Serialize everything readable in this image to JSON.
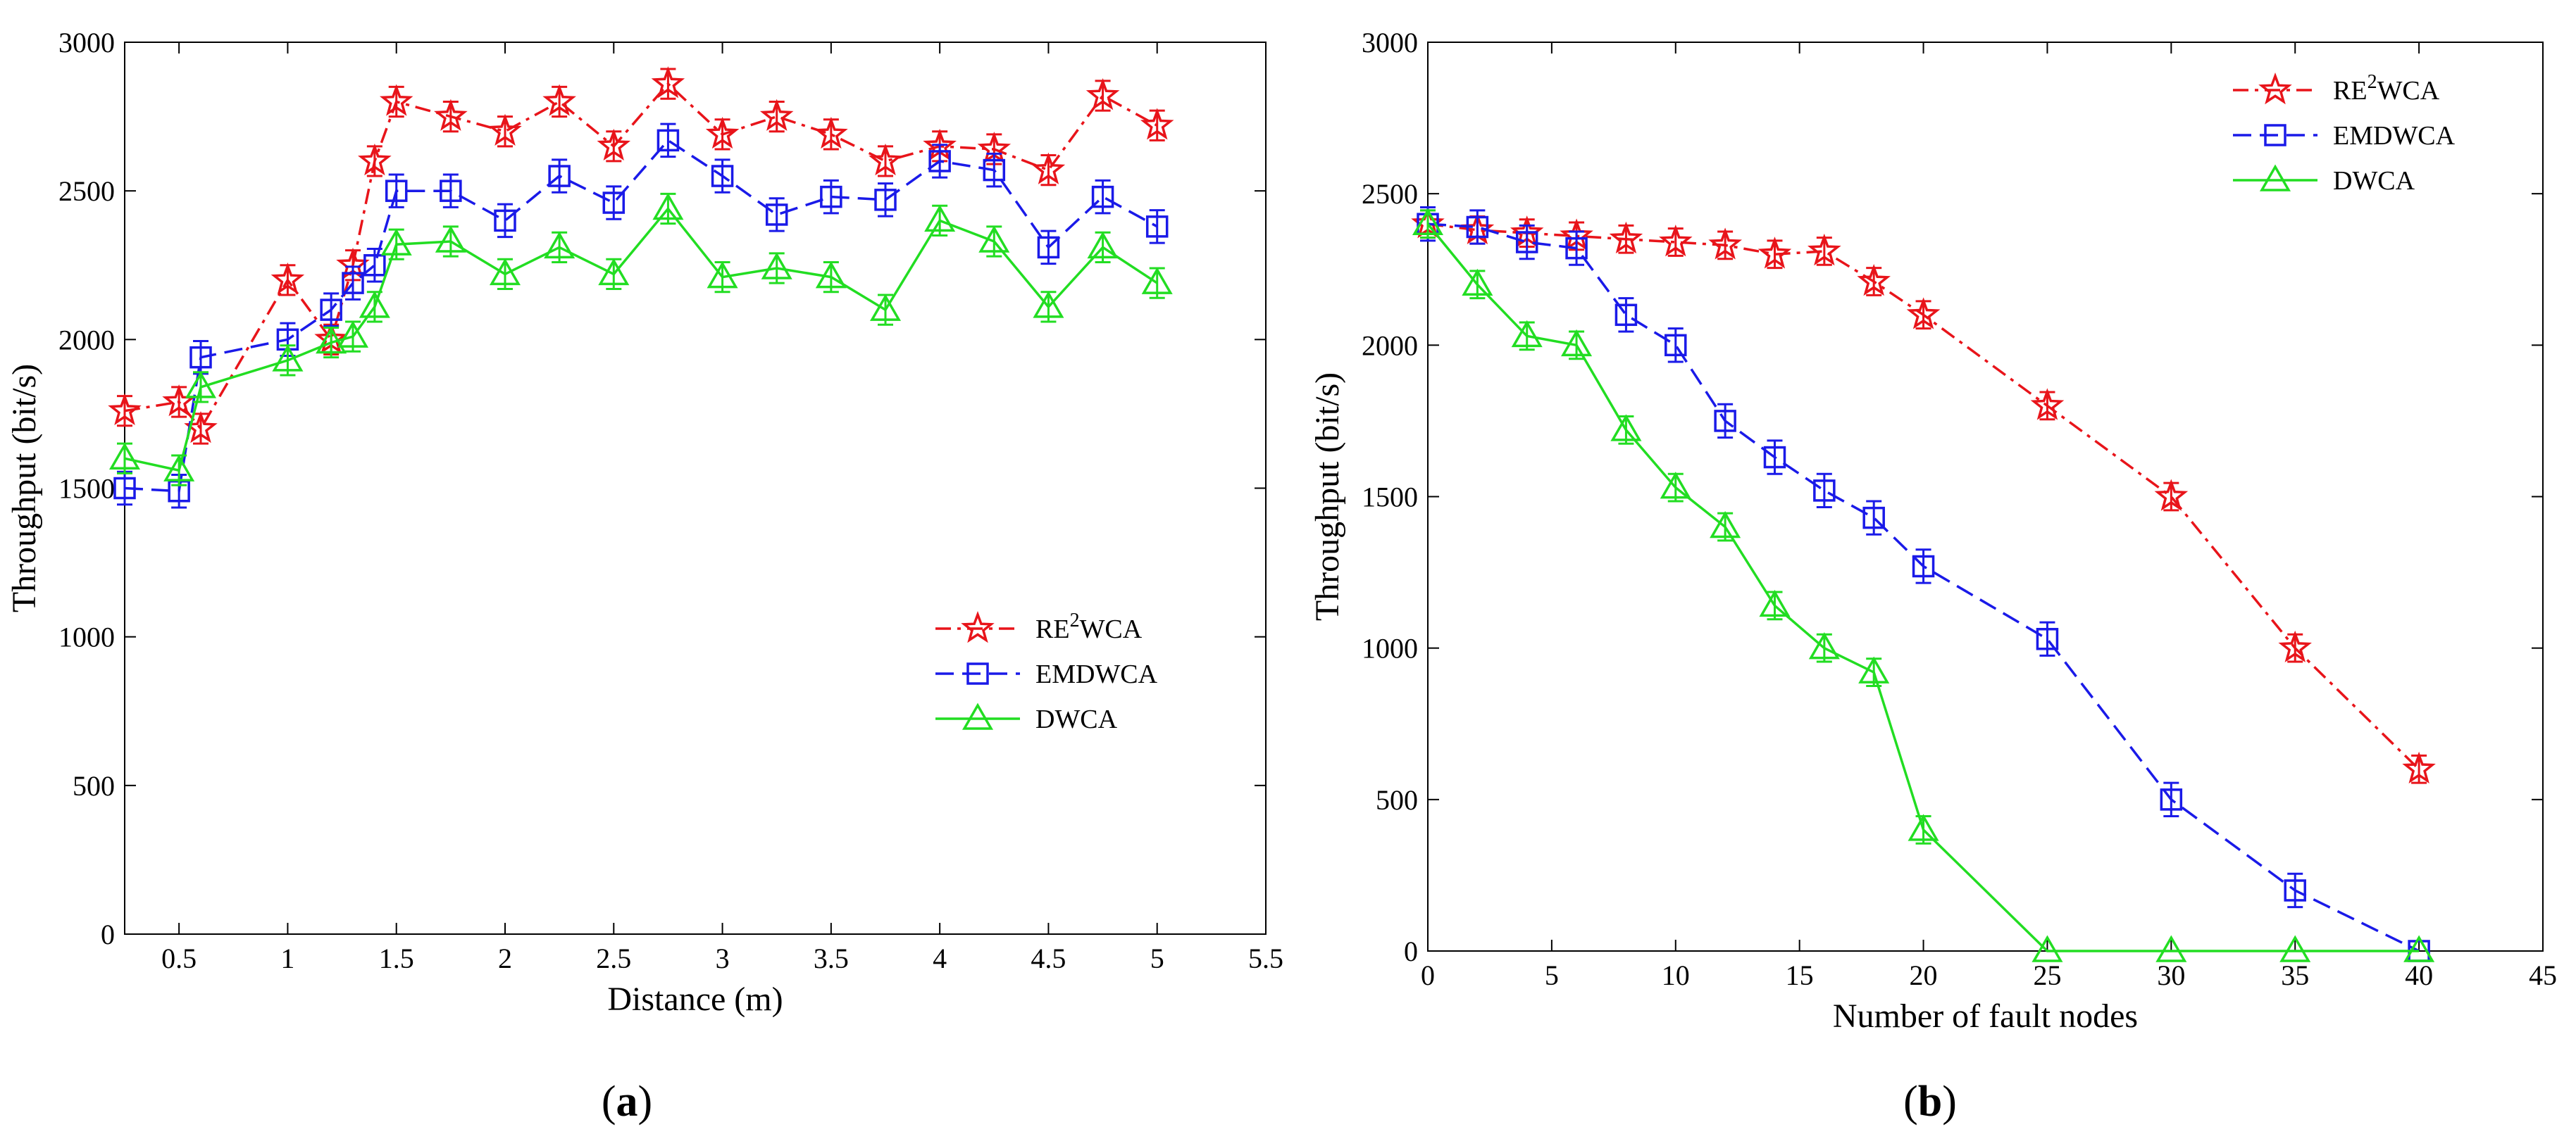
{
  "figure": {
    "panel_labels": [
      "(a)",
      "(b)"
    ]
  },
  "chart_data": [
    {
      "type": "line",
      "panel": "(a)",
      "title": "",
      "xlabel": "Distance (m)",
      "ylabel": "Throughput (bit/s)",
      "xlim": [
        0.25,
        5.5
      ],
      "ylim": [
        0,
        3000
      ],
      "xticks": [
        0.5,
        1,
        1.5,
        2,
        2.5,
        3,
        3.5,
        4,
        4.5,
        5,
        5.5
      ],
      "yticks": [
        0,
        500,
        1000,
        1500,
        2000,
        2500,
        3000
      ],
      "legend_position": "lower-right",
      "x": [
        0.25,
        0.5,
        0.6,
        1.0,
        1.2,
        1.3,
        1.4,
        1.5,
        1.75,
        2.0,
        2.25,
        2.5,
        2.75,
        3.0,
        3.25,
        3.5,
        3.75,
        4.0,
        4.25,
        4.5,
        4.75,
        5.0
      ],
      "series": [
        {
          "name": "RE2WCA",
          "legend_main": "RE",
          "legend_sup": "2",
          "legend_tail": "WCA",
          "color": "#e8141a",
          "dash": "22 9 5 9",
          "marker": "star",
          "values": [
            1760,
            1790,
            1700,
            2200,
            2000,
            2250,
            2600,
            2800,
            2750,
            2700,
            2800,
            2650,
            2860,
            2690,
            2750,
            2690,
            2600,
            2650,
            2640,
            2570,
            2820,
            2720
          ],
          "error": 50
        },
        {
          "name": "EMDWCA",
          "legend_main": "EMDWCA",
          "legend_sup": "",
          "legend_tail": "",
          "color": "#1a1ae8",
          "dash": "26 12",
          "marker": "square",
          "values": [
            1500,
            1490,
            1940,
            2000,
            2100,
            2190,
            2250,
            2500,
            2500,
            2400,
            2550,
            2460,
            2670,
            2550,
            2420,
            2480,
            2470,
            2600,
            2570,
            2310,
            2480,
            2380
          ],
          "error": 55
        },
        {
          "name": "DWCA",
          "legend_main": "DWCA",
          "legend_sup": "",
          "legend_tail": "",
          "color": "#22dd22",
          "dash": "",
          "marker": "triangle",
          "values": [
            1600,
            1560,
            1840,
            1930,
            1990,
            2010,
            2110,
            2320,
            2330,
            2220,
            2310,
            2220,
            2440,
            2210,
            2240,
            2210,
            2100,
            2400,
            2330,
            2110,
            2310,
            2190
          ],
          "error": 50
        }
      ]
    },
    {
      "type": "line",
      "panel": "(b)",
      "title": "",
      "xlabel": "Number of fault nodes",
      "ylabel": "Throughput (bit/s)",
      "xlim": [
        0,
        45
      ],
      "ylim": [
        0,
        3000
      ],
      "xticks": [
        0,
        5,
        10,
        15,
        20,
        25,
        30,
        35,
        40,
        45
      ],
      "yticks": [
        0,
        500,
        1000,
        1500,
        2000,
        2500,
        3000
      ],
      "legend_position": "top-right",
      "series": [
        {
          "name": "RE2WCA",
          "legend_main": "RE",
          "legend_sup": "2",
          "legend_tail": "WCA",
          "color": "#e8141a",
          "dash": "22 9 5 9",
          "marker": "star",
          "x": [
            0,
            2,
            4,
            6,
            8,
            10,
            12,
            14,
            16,
            18,
            20,
            25,
            30,
            35,
            40
          ],
          "values": [
            2400,
            2380,
            2370,
            2360,
            2350,
            2340,
            2330,
            2300,
            2310,
            2210,
            2100,
            1800,
            1500,
            1000,
            600
          ],
          "error": 45
        },
        {
          "name": "EMDWCA",
          "legend_main": "EMDWCA",
          "legend_sup": "",
          "legend_tail": "",
          "color": "#1a1ae8",
          "dash": "26 12",
          "marker": "square",
          "x": [
            0,
            2,
            4,
            6,
            8,
            10,
            12,
            14,
            16,
            18,
            20,
            25,
            30,
            35,
            40
          ],
          "values": [
            2400,
            2390,
            2340,
            2320,
            2100,
            2000,
            1750,
            1630,
            1520,
            1430,
            1270,
            1030,
            500,
            200,
            0
          ],
          "error": 55
        },
        {
          "name": "DWCA",
          "legend_main": "DWCA",
          "legend_sup": "",
          "legend_tail": "",
          "color": "#22dd22",
          "dash": "",
          "marker": "triangle",
          "x": [
            0,
            2,
            4,
            6,
            8,
            10,
            12,
            14,
            16,
            18,
            20,
            25,
            30,
            35,
            40
          ],
          "values": [
            2400,
            2200,
            2030,
            2000,
            1720,
            1530,
            1400,
            1140,
            1000,
            920,
            400,
            0,
            0,
            0,
            0
          ],
          "error": 45
        }
      ]
    }
  ]
}
